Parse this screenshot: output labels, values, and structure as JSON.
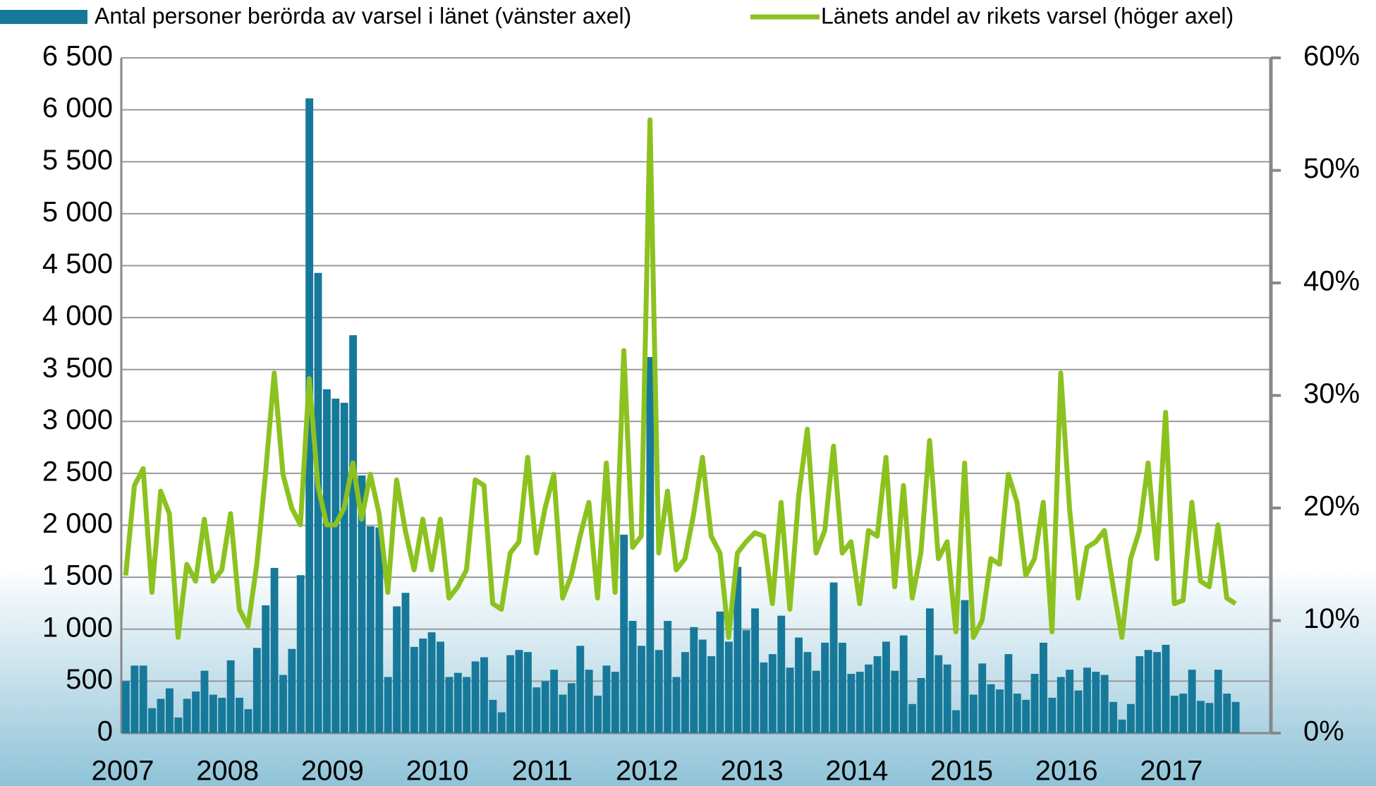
{
  "chart_data": {
    "type": "bar_line",
    "categories": [
      "2007",
      null,
      null,
      null,
      null,
      null,
      null,
      null,
      null,
      null,
      null,
      null,
      "2008",
      null,
      null,
      null,
      null,
      null,
      null,
      null,
      null,
      null,
      null,
      null,
      "2009",
      null,
      null,
      null,
      null,
      null,
      null,
      null,
      null,
      null,
      null,
      null,
      "2010",
      null,
      null,
      null,
      null,
      null,
      null,
      null,
      null,
      null,
      null,
      null,
      "2011",
      null,
      null,
      null,
      null,
      null,
      null,
      null,
      null,
      null,
      null,
      null,
      "2012",
      null,
      null,
      null,
      null,
      null,
      null,
      null,
      null,
      null,
      null,
      null,
      "2013",
      null,
      null,
      null,
      null,
      null,
      null,
      null,
      null,
      null,
      null,
      null,
      "2014",
      null,
      null,
      null,
      null,
      null,
      null,
      null,
      null,
      null,
      null,
      null,
      "2015",
      null,
      null,
      null,
      null,
      null,
      null,
      null,
      null,
      null,
      null,
      null,
      "2016",
      null,
      null,
      null,
      null,
      null,
      null,
      null,
      null,
      null,
      null,
      null,
      "2017",
      null,
      null,
      null,
      null,
      null,
      null,
      null
    ],
    "series": [
      {
        "name": "Antal personer berörda av varsel i länet (vänster axel)",
        "type": "bar",
        "color": "#17799a",
        "values": [
          500,
          650,
          650,
          240,
          330,
          430,
          150,
          330,
          400,
          600,
          370,
          340,
          700,
          340,
          230,
          820,
          1230,
          1590,
          560,
          810,
          1520,
          6110,
          4430,
          3310,
          3220,
          3180,
          3830,
          2480,
          1990,
          1980,
          540,
          1220,
          1350,
          830,
          910,
          970,
          880,
          540,
          580,
          540,
          690,
          730,
          320,
          200,
          750,
          800,
          780,
          440,
          500,
          610,
          370,
          480,
          840,
          610,
          360,
          650,
          590,
          1910,
          1080,
          840,
          3620,
          800,
          1080,
          540,
          780,
          1020,
          900,
          740,
          1170,
          880,
          1600,
          990,
          1200,
          680,
          760,
          1130,
          630,
          920,
          780,
          600,
          870,
          1450,
          870,
          570,
          590,
          660,
          740,
          880,
          600,
          940,
          280,
          530,
          1200,
          750,
          660,
          220,
          1280,
          370,
          670,
          470,
          420,
          760,
          380,
          320,
          570,
          870,
          340,
          540,
          610,
          410,
          630,
          590,
          560,
          300,
          130,
          280,
          740,
          800,
          780,
          850,
          360,
          380,
          610,
          310,
          290,
          610,
          380,
          300
        ]
      },
      {
        "name": "Länets andel av rikets varsel (höger axel)",
        "type": "line",
        "axis": "y2",
        "color": "#8cc21f",
        "values": [
          14,
          22,
          23.5,
          12.5,
          21.5,
          19.5,
          8.5,
          15,
          13.5,
          19,
          13.5,
          14.5,
          19.5,
          11,
          9.5,
          15,
          23,
          32,
          23,
          20,
          18.5,
          31.5,
          22,
          18.5,
          18.5,
          20,
          24,
          19,
          23,
          19.5,
          12.5,
          22.5,
          18,
          14.5,
          19,
          14.5,
          19,
          12,
          13,
          14.5,
          22.5,
          22,
          11.5,
          11,
          16,
          17,
          24.5,
          16,
          20,
          23,
          12,
          14,
          17.5,
          20.5,
          12,
          24,
          12.5,
          34,
          16.5,
          17.5,
          54.5,
          16,
          21.5,
          14.5,
          15.5,
          19.5,
          24.5,
          17.5,
          16,
          8.5,
          16,
          17,
          17.8,
          17.5,
          11.5,
          20.5,
          11,
          21,
          27,
          16,
          18,
          25.5,
          16,
          17,
          11.5,
          18,
          17.5,
          24.5,
          13,
          22,
          12,
          16,
          26,
          15.5,
          17,
          9,
          24,
          8.5,
          10,
          15.5,
          15,
          23,
          20.5,
          14,
          15.5,
          20.5,
          9,
          32,
          20,
          12,
          16.5,
          17,
          18,
          13,
          8.5,
          15.5,
          18,
          24,
          15.5,
          28.5,
          11.5,
          11.8,
          20.5,
          13.5,
          13,
          18.5,
          12,
          11.5
        ]
      }
    ],
    "ylim": [
      0,
      6500
    ],
    "yticks": [
      0,
      500,
      {
        "value": 1000,
        "label": "1 000"
      },
      {
        "value": 1500,
        "label": "1 500"
      },
      {
        "value": 2000,
        "label": "2 000"
      },
      {
        "value": 2500,
        "label": "2 500"
      },
      {
        "value": 3000,
        "label": "3 000"
      },
      {
        "value": 3500,
        "label": "3 500"
      },
      {
        "value": 4000,
        "label": "4 000"
      },
      {
        "value": 4500,
        "label": "4 500"
      },
      {
        "value": 5000,
        "label": "5 000"
      },
      {
        "value": 5500,
        "label": "5 500"
      },
      {
        "value": 6000,
        "label": "6 000"
      },
      {
        "value": 6500,
        "label": "6 500"
      }
    ],
    "y2lim": [
      0,
      60
    ],
    "y2ticks": [
      {
        "value": 0,
        "label": "0%"
      },
      {
        "value": 10,
        "label": "10%"
      },
      {
        "value": 20,
        "label": "20%"
      },
      {
        "value": 30,
        "label": "30%"
      },
      {
        "value": 40,
        "label": "40%"
      },
      {
        "value": 50,
        "label": "50%"
      },
      {
        "value": 60,
        "label": "60%"
      }
    ],
    "grid": true,
    "legend": "top"
  }
}
